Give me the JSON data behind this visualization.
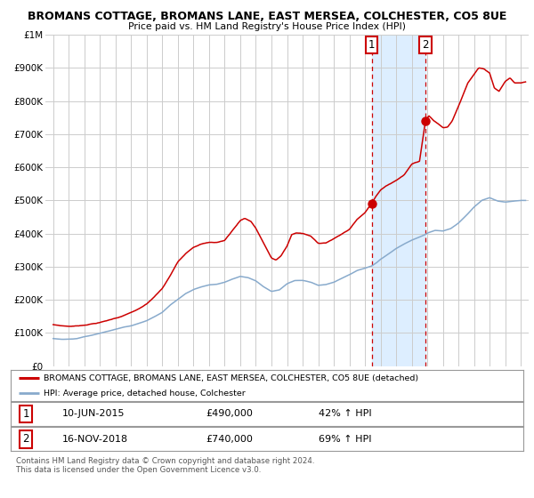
{
  "title": "BROMANS COTTAGE, BROMANS LANE, EAST MERSEA, COLCHESTER, CO5 8UE",
  "subtitle": "Price paid vs. HM Land Registry's House Price Index (HPI)",
  "ylabel_ticks": [
    "£0",
    "£100K",
    "£200K",
    "£300K",
    "£400K",
    "£500K",
    "£600K",
    "£700K",
    "£800K",
    "£900K",
    "£1M"
  ],
  "ytick_values": [
    0,
    100000,
    200000,
    300000,
    400000,
    500000,
    600000,
    700000,
    800000,
    900000,
    1000000
  ],
  "ylim": [
    0,
    1000000
  ],
  "xlim_start": 1994.5,
  "xlim_end": 2025.5,
  "sale1_x": 2015.44,
  "sale1_y": 490000,
  "sale2_x": 2018.88,
  "sale2_y": 740000,
  "shade_start": 2015.44,
  "shade_end": 2018.88,
  "legend_line1": "BROMANS COTTAGE, BROMANS LANE, EAST MERSEA, COLCHESTER, CO5 8UE (detached)",
  "legend_line2": "HPI: Average price, detached house, Colchester",
  "table_row1_label": "1",
  "table_row1_date": "10-JUN-2015",
  "table_row1_price": "£490,000",
  "table_row1_hpi": "42% ↑ HPI",
  "table_row2_label": "2",
  "table_row2_date": "16-NOV-2018",
  "table_row2_price": "£740,000",
  "table_row2_hpi": "69% ↑ HPI",
  "footer": "Contains HM Land Registry data © Crown copyright and database right 2024.\nThis data is licensed under the Open Government Licence v3.0.",
  "red_color": "#cc0000",
  "blue_color": "#88aacc",
  "shade_color": "#ddeeff",
  "grid_color": "#cccccc",
  "bg_color": "#ffffff"
}
